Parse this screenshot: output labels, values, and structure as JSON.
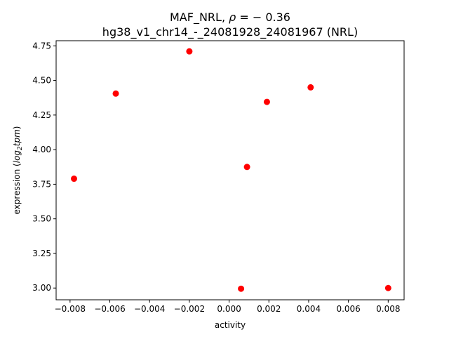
{
  "chart_data": {
    "type": "scatter",
    "title_line1_prefix": "MAF_NRL, ",
    "title_line1_rho": "ρ",
    "title_line1_suffix": " = − 0.36",
    "title_line2": "hg38_v1_chr14_-_24081928_24081967 (NRL)",
    "xlabel": "activity",
    "ylabel_prefix": "expression (",
    "ylabel_log": "log",
    "ylabel_sub": "2",
    "ylabel_tpm": "tpm",
    "ylabel_suffix": ")",
    "xlim": [
      -0.0087,
      0.0088
    ],
    "ylim": [
      2.915,
      4.787
    ],
    "xticks": [
      -0.008,
      -0.006,
      -0.004,
      -0.002,
      0.0,
      0.002,
      0.004,
      0.006,
      0.008
    ],
    "xtick_labels": [
      "−0.008",
      "−0.006",
      "−0.004",
      "−0.002",
      "0.000",
      "0.002",
      "0.004",
      "0.006",
      "0.008"
    ],
    "yticks": [
      3.0,
      3.25,
      3.5,
      3.75,
      4.0,
      4.25,
      4.5,
      4.75
    ],
    "ytick_labels": [
      "3.00",
      "3.25",
      "3.50",
      "3.75",
      "4.00",
      "4.25",
      "4.50",
      "4.75"
    ],
    "grid": false,
    "marker_color": "#ff0000",
    "points": [
      {
        "x": -0.0078,
        "y": 3.79
      },
      {
        "x": -0.0057,
        "y": 4.405
      },
      {
        "x": -0.002,
        "y": 4.71
      },
      {
        "x": 0.0006,
        "y": 2.995
      },
      {
        "x": 0.0009,
        "y": 3.875
      },
      {
        "x": 0.0019,
        "y": 4.345
      },
      {
        "x": 0.0041,
        "y": 4.45
      },
      {
        "x": 0.008,
        "y": 3.0
      }
    ]
  }
}
